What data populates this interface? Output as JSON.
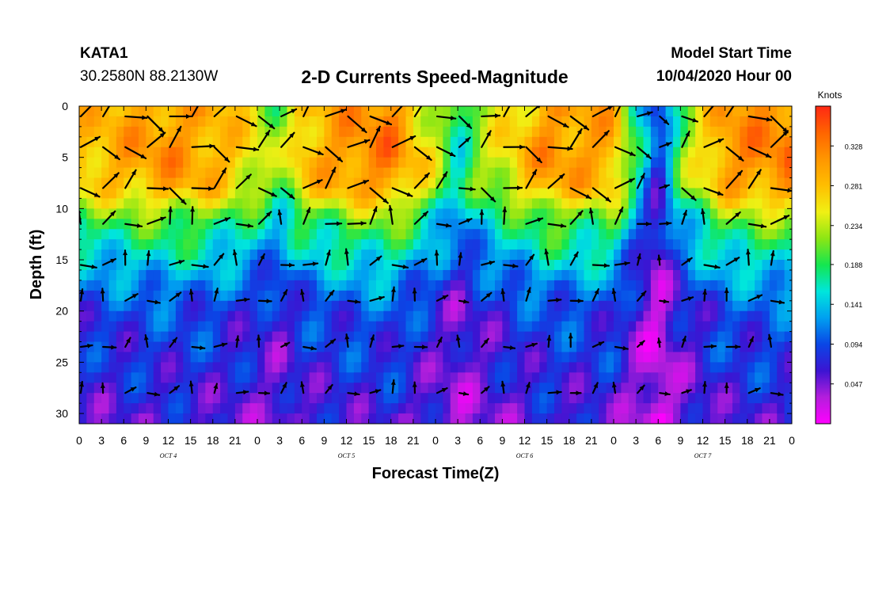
{
  "header": {
    "station": "KATA1",
    "coordinates": "30.2580N 88.2130W",
    "title": "2-D Currents Speed-Magnitude",
    "model_start_label": "Model Start Time",
    "model_start_value": "10/04/2020 Hour 00"
  },
  "chart_data": {
    "type": "heatmap",
    "title": "2-D Currents Speed-Magnitude",
    "xlabel": "Forecast Time(Z)",
    "ylabel": "Depth (ft)",
    "x_tick_labels": [
      "0",
      "3",
      "6",
      "9",
      "12",
      "15",
      "18",
      "21",
      "0",
      "3",
      "6",
      "9",
      "12",
      "15",
      "18",
      "21",
      "0",
      "3",
      "6",
      "9",
      "12",
      "15",
      "18",
      "21",
      "0",
      "3",
      "6",
      "9",
      "12",
      "15",
      "18",
      "21",
      "0"
    ],
    "x_range_hours": [
      0,
      96
    ],
    "day_labels": [
      {
        "text": "OCT 4",
        "hour": 12
      },
      {
        "text": "OCT 5",
        "hour": 36
      },
      {
        "text": "OCT 6",
        "hour": 60
      },
      {
        "text": "OCT 7",
        "hour": 84
      }
    ],
    "y_ticks": [
      0,
      5,
      10,
      15,
      20,
      25,
      30
    ],
    "y_range_ft": [
      0,
      31
    ],
    "y_inverted": true,
    "colorbar": {
      "unit": "Knots",
      "ticks": [
        0.047,
        0.094,
        0.141,
        0.188,
        0.234,
        0.281,
        0.328
      ],
      "range": [
        0,
        0.375
      ]
    },
    "colormap": [
      "#ff00ff",
      "#b41edc",
      "#3c14d2",
      "#0a46e6",
      "#00a0f0",
      "#00e6dc",
      "#14e650",
      "#8ce614",
      "#f0f014",
      "#ffbe00",
      "#ff9600",
      "#ff6400",
      "#ff2814"
    ],
    "speed_profile": [
      {
        "depth": 0,
        "speed": 0.29
      },
      {
        "depth": 5,
        "speed": 0.3
      },
      {
        "depth": 8,
        "speed": 0.28
      },
      {
        "depth": 11,
        "speed": 0.2
      },
      {
        "depth": 14,
        "speed": 0.16
      },
      {
        "depth": 17,
        "speed": 0.12
      },
      {
        "depth": 20,
        "speed": 0.09
      },
      {
        "depth": 24,
        "speed": 0.08
      },
      {
        "depth": 31,
        "speed": 0.06
      }
    ],
    "time_modulation": [
      {
        "hour": 0,
        "factor": 0.95
      },
      {
        "hour": 6,
        "factor": 1.0
      },
      {
        "hour": 12,
        "factor": 1.05
      },
      {
        "hour": 18,
        "factor": 1.0
      },
      {
        "hour": 24,
        "factor": 0.85
      },
      {
        "hour": 27,
        "factor": 0.7
      },
      {
        "hour": 30,
        "factor": 0.95
      },
      {
        "hour": 36,
        "factor": 1.05
      },
      {
        "hour": 42,
        "factor": 1.1
      },
      {
        "hour": 48,
        "factor": 0.8
      },
      {
        "hour": 51,
        "factor": 0.55
      },
      {
        "hour": 54,
        "factor": 0.75
      },
      {
        "hour": 57,
        "factor": 0.85
      },
      {
        "hour": 63,
        "factor": 1.05
      },
      {
        "hour": 72,
        "factor": 1.0
      },
      {
        "hour": 75,
        "factor": 0.6
      },
      {
        "hour": 78,
        "factor": 0.25
      },
      {
        "hour": 81,
        "factor": 0.7
      },
      {
        "hour": 87,
        "factor": 1.05
      },
      {
        "hour": 96,
        "factor": 1.1
      }
    ],
    "vector_direction_deg": {
      "upper_layer": 10,
      "lower_layer": 45
    },
    "vector_depths": [
      1,
      4,
      8,
      11.5,
      15.5,
      19,
      23.5,
      28
    ],
    "vector_hours": [
      0,
      3,
      6,
      9,
      12,
      15,
      18,
      21,
      24,
      27,
      30,
      33,
      36,
      39,
      42,
      45,
      48,
      51,
      54,
      57,
      60,
      63,
      66,
      69,
      72,
      75,
      78,
      81,
      84,
      87,
      90,
      93
    ]
  }
}
